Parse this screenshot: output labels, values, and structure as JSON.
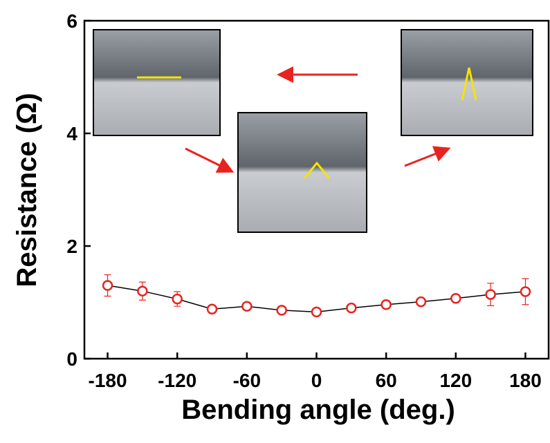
{
  "chart_data": {
    "type": "line",
    "x_label": "Bending angle (deg.)",
    "y_label": "Resistance (Ω)",
    "x": [
      -180,
      -150,
      -120,
      -90,
      -60,
      -30,
      0,
      30,
      60,
      90,
      120,
      150,
      180
    ],
    "values": [
      1.3,
      1.2,
      1.06,
      0.88,
      0.93,
      0.86,
      0.83,
      0.9,
      0.96,
      1.01,
      1.07,
      1.14,
      1.19
    ],
    "errors": [
      0.19,
      0.16,
      0.13,
      0.04,
      0.03,
      0.04,
      0.03,
      0.04,
      0.04,
      0.04,
      0.04,
      0.2,
      0.23
    ],
    "marker_color": "#e8231f",
    "line_color": "#000000",
    "xlim": [
      -200,
      200
    ],
    "xticks": [
      -180,
      -120,
      -60,
      0,
      60,
      120,
      180
    ],
    "ylim": [
      0,
      6
    ],
    "yticks": [
      0,
      2,
      4,
      6
    ]
  }
}
